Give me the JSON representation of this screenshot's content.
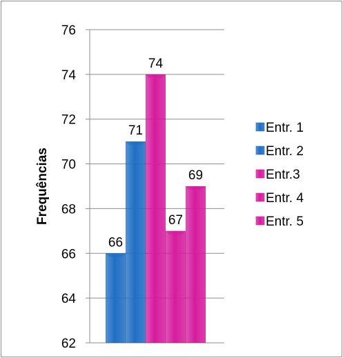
{
  "chart_data": {
    "type": "bar",
    "title": "",
    "xlabel": "",
    "ylabel": "Frequências",
    "ylim": [
      62,
      76
    ],
    "yticks": [
      62,
      64,
      66,
      68,
      70,
      72,
      74,
      76
    ],
    "grid": true,
    "legend_position": "right",
    "series": [
      {
        "name": "Entr. 1",
        "values": [
          66
        ],
        "color": "#1f6fc4",
        "label": "66"
      },
      {
        "name": "Entr. 2",
        "values": [
          71
        ],
        "color": "#1f6fc4",
        "label": "71"
      },
      {
        "name": "Entr.3",
        "values": [
          74
        ],
        "color": "#d61c9e",
        "label": "74"
      },
      {
        "name": "Entr. 4",
        "values": [
          67
        ],
        "color": "#d61c9e",
        "label": "67"
      },
      {
        "name": "Entr. 5",
        "values": [
          69
        ],
        "color": "#d61c9e",
        "label": "69"
      }
    ]
  }
}
